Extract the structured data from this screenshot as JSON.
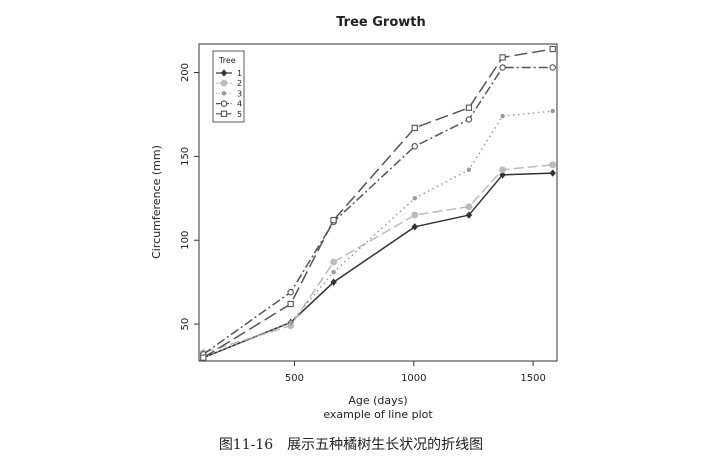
{
  "chart_data": {
    "type": "line",
    "title": "Tree Growth",
    "xlabel": "Age (days)",
    "subtitle": "example of line plot",
    "ylabel": "Circumference (mm)",
    "xlim": [
      100,
      1600
    ],
    "ylim": [
      28,
      217
    ],
    "xticks": [
      500,
      1000,
      1500
    ],
    "yticks": [
      50,
      100,
      150,
      200
    ],
    "legend": {
      "title": "Tree",
      "position": "top-left"
    },
    "x": [
      118,
      484,
      664,
      1004,
      1231,
      1372,
      1582
    ],
    "series": [
      {
        "name": "1",
        "marker": "diamond-filled",
        "dash": "",
        "color": "#333333",
        "values": [
          30,
          51,
          75,
          108,
          115,
          139,
          140
        ]
      },
      {
        "name": "2",
        "marker": "circle-filled",
        "dash": "10 4",
        "color": "#bbbbbb",
        "values": [
          33,
          49,
          87,
          115,
          120,
          142,
          145
        ]
      },
      {
        "name": "3",
        "marker": "dot-filled",
        "dash": "1.5 3.5",
        "color": "#999999",
        "values": [
          30,
          51,
          81,
          125,
          142,
          174,
          177
        ]
      },
      {
        "name": "4",
        "marker": "circle-open",
        "dash": "9 3 2 3",
        "color": "#555555",
        "values": [
          32,
          69,
          111,
          156,
          172,
          203,
          203
        ]
      },
      {
        "name": "5",
        "marker": "square-open",
        "dash": "13 5",
        "color": "#555555",
        "values": [
          30,
          62,
          112,
          167,
          179,
          209,
          214
        ]
      }
    ]
  },
  "caption": "图11-16　展示五种橘树生长状况的折线图"
}
